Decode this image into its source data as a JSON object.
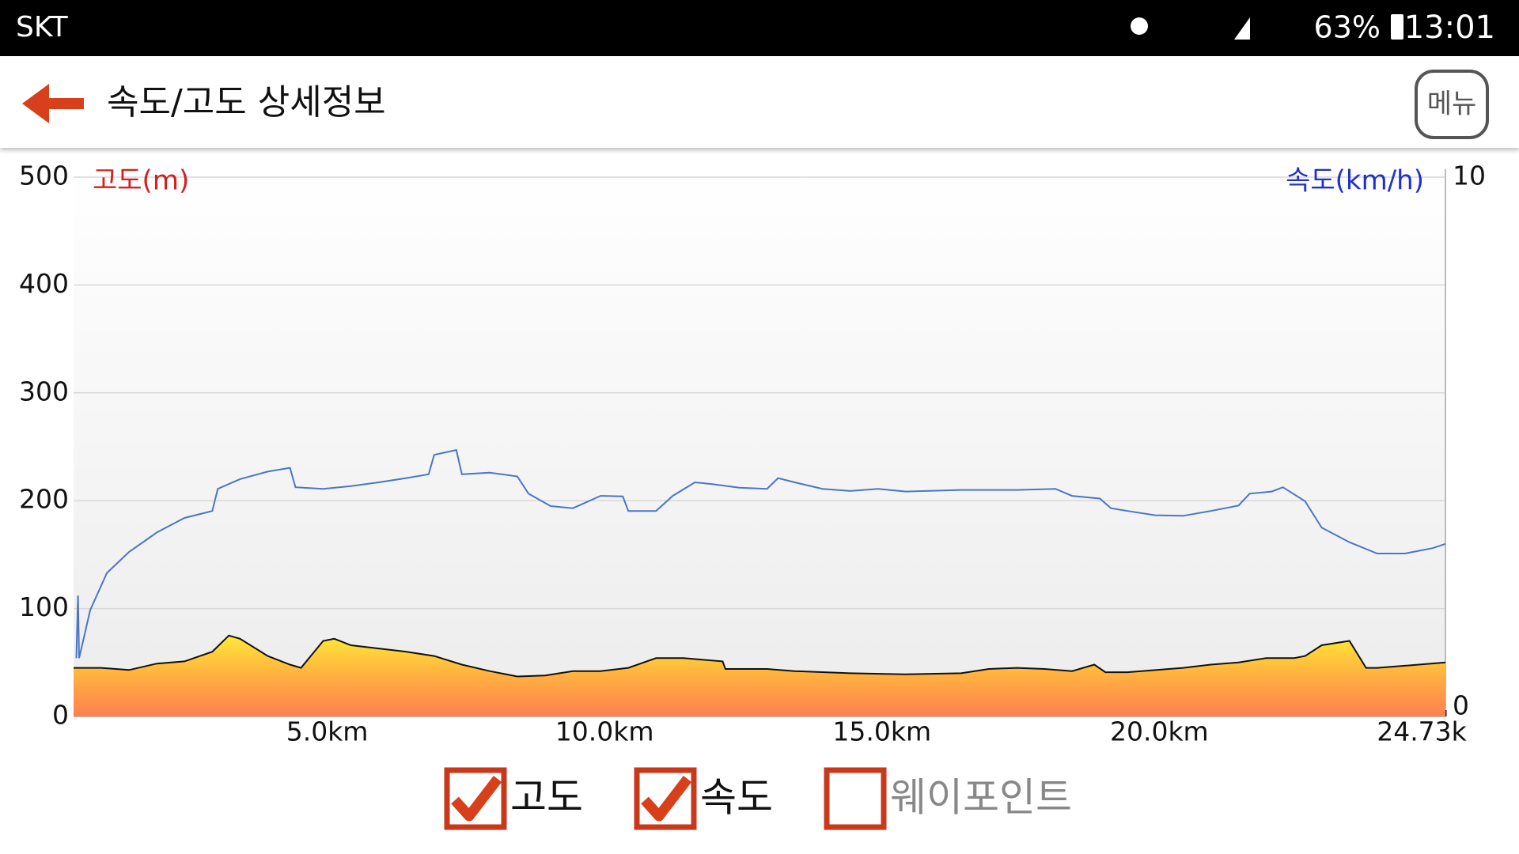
{
  "status_bar": {
    "carrier": "SKT",
    "battery": "63%",
    "time": "13:01"
  },
  "header": {
    "title": "속도/고도 상세정보",
    "menu": "메뉴"
  },
  "chart_data": {
    "type": "line",
    "ylabel": "고도(m)",
    "y2label": "속도(km/h)",
    "xlim": [
      0,
      24.73
    ],
    "xticks": [
      {
        "value": 5,
        "label": "5.0km"
      },
      {
        "value": 10,
        "label": "10.0km"
      },
      {
        "value": 15,
        "label": "15.0km"
      },
      {
        "value": 20,
        "label": "20.0km"
      },
      {
        "value": 24.73,
        "label": "24.73k"
      }
    ],
    "ylim": [
      0,
      500
    ],
    "yticks": [
      0,
      100,
      200,
      300,
      400,
      500
    ],
    "y2lim": [
      0,
      10
    ],
    "y2ticks": [
      0,
      10
    ],
    "grid": true,
    "series": [
      {
        "name": "고도",
        "color": "#d42020",
        "area": true,
        "visible": true,
        "x": [
          0,
          0.5,
          1.0,
          1.5,
          2.0,
          2.5,
          2.8,
          3.0,
          3.5,
          3.9,
          4.1,
          4.5,
          4.7,
          5.0,
          5.5,
          6.0,
          6.5,
          7.0,
          7.5,
          8.0,
          8.5,
          9.0,
          9.5,
          10.0,
          10.5,
          11.0,
          11.7,
          11.75,
          12.5,
          13.0,
          14.0,
          15.0,
          16.0,
          16.5,
          17.0,
          17.5,
          18.0,
          18.4,
          18.6,
          19.0,
          20.0,
          20.5,
          21.0,
          21.5,
          22.0,
          22.2,
          22.5,
          23.0,
          23.3,
          23.5,
          24.0,
          24.73
        ],
        "values": [
          45,
          45,
          43,
          49,
          51,
          60,
          75,
          72,
          56,
          48,
          45,
          70,
          72,
          66,
          63,
          60,
          56,
          48,
          42,
          37,
          38,
          42,
          42,
          45,
          54,
          54,
          51,
          44,
          44,
          42,
          40,
          39,
          40,
          44,
          45,
          44,
          42,
          48,
          41,
          41,
          45,
          48,
          50,
          54,
          54,
          56,
          66,
          70,
          45,
          45,
          47,
          50
        ]
      },
      {
        "name": "속도",
        "color": "#2030c8",
        "line_color": "#4a76c8",
        "axis": "y2",
        "visible": true,
        "x": [
          0.05,
          0.08,
          0.1,
          0.3,
          0.6,
          1.0,
          1.5,
          2.0,
          2.5,
          2.6,
          3.0,
          3.5,
          3.9,
          4.0,
          4.5,
          5.0,
          5.5,
          6.0,
          6.4,
          6.5,
          6.9,
          7.0,
          7.5,
          8.0,
          8.2,
          8.6,
          9.0,
          9.5,
          9.9,
          10.0,
          10.5,
          10.8,
          11.2,
          11.5,
          12.0,
          12.5,
          12.7,
          13.0,
          13.5,
          14.0,
          14.5,
          15.0,
          16.0,
          17.0,
          17.7,
          18.0,
          18.5,
          18.7,
          19.0,
          19.5,
          20.0,
          20.5,
          21.0,
          21.2,
          21.6,
          21.8,
          22.2,
          22.5,
          23.0,
          23.5,
          24.0,
          24.5,
          24.73
        ],
        "values": [
          1.08,
          2.24,
          1.08,
          1.97,
          2.66,
          3.05,
          3.41,
          3.68,
          3.81,
          4.22,
          4.4,
          4.54,
          4.61,
          4.25,
          4.22,
          4.27,
          4.34,
          4.42,
          4.49,
          4.85,
          4.94,
          4.49,
          4.52,
          4.45,
          4.13,
          3.9,
          3.86,
          4.09,
          4.08,
          3.81,
          3.81,
          4.09,
          4.34,
          4.31,
          4.24,
          4.22,
          4.42,
          4.34,
          4.22,
          4.18,
          4.22,
          4.17,
          4.2,
          4.2,
          4.22,
          4.09,
          4.04,
          3.86,
          3.81,
          3.73,
          3.72,
          3.81,
          3.91,
          4.13,
          4.17,
          4.25,
          3.99,
          3.5,
          3.23,
          3.02,
          3.02,
          3.12,
          3.2
        ]
      }
    ],
    "waypoint_label": "웨이포인트",
    "waypoints_visible": false
  }
}
